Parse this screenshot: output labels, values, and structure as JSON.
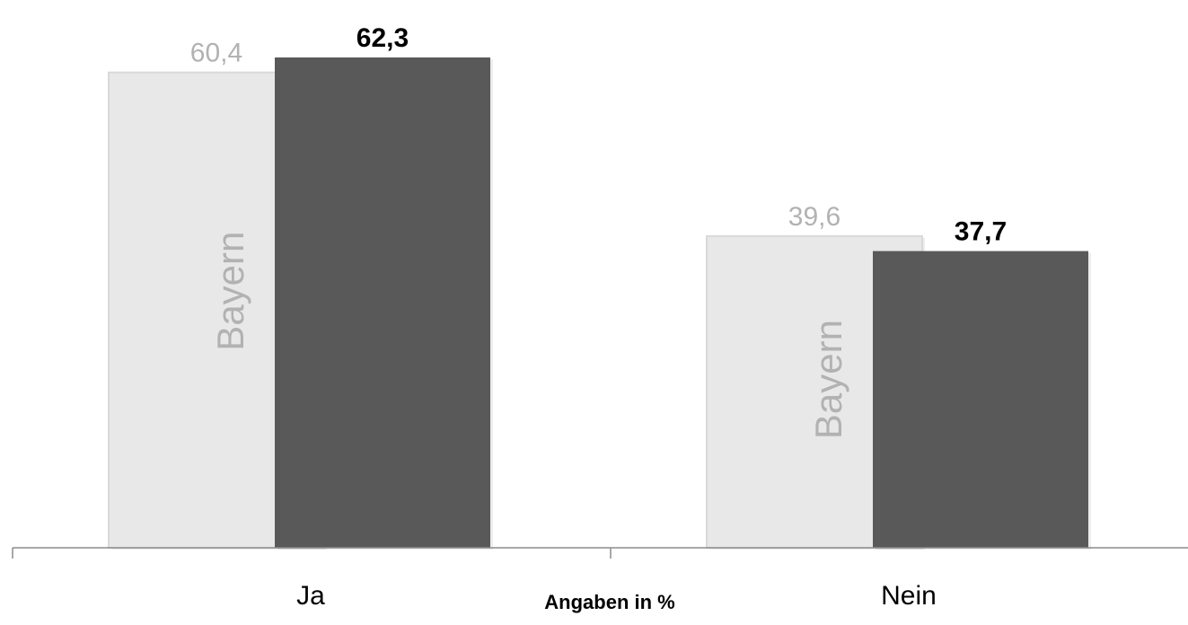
{
  "chart_data": {
    "type": "bar",
    "categories": [
      "Ja",
      "Nein"
    ],
    "series": [
      {
        "name": "Bayern",
        "values": [
          60.4,
          39.6
        ],
        "labels": [
          "60,4",
          "39,6"
        ],
        "color": "#E8E8E8",
        "label_color": "#B2B2B2",
        "in_bar_label": "Bayern"
      },
      {
        "values": [
          62.3,
          37.7
        ],
        "labels": [
          "62,3",
          "37,7"
        ],
        "color": "#595959",
        "label_color": "#000000"
      }
    ],
    "xlabel": "Angaben in %",
    "ylim": [
      0,
      62.3
    ],
    "grid": false
  }
}
